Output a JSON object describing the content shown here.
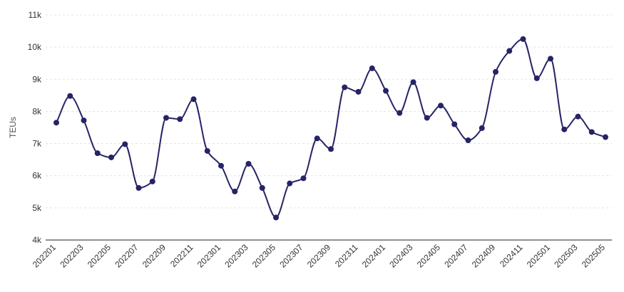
{
  "chart_data": {
    "type": "line",
    "title": "",
    "xlabel": "",
    "ylabel": "TEUs",
    "ylim": [
      4000,
      11000
    ],
    "yticks": [
      "4k",
      "5k",
      "6k",
      "7k",
      "8k",
      "9k",
      "10k",
      "11k"
    ],
    "ytick_values": [
      4000,
      5000,
      6000,
      7000,
      8000,
      9000,
      10000,
      11000
    ],
    "grid": true,
    "color": "#262466",
    "x": [
      "202201",
      "202202",
      "202203",
      "202204",
      "202205",
      "202206",
      "202207",
      "202208",
      "202209",
      "202210",
      "202211",
      "202212",
      "202301",
      "202302",
      "202303",
      "202304",
      "202305",
      "202306",
      "202307",
      "202308",
      "202309",
      "202310",
      "202311",
      "202312",
      "202401",
      "202402",
      "202403",
      "202404",
      "202405",
      "202406",
      "202407",
      "202408",
      "202409",
      "202410",
      "202411",
      "202412",
      "202501",
      "202502",
      "202503",
      "202504",
      "202505"
    ],
    "xtick_labels": [
      "202201",
      "202203",
      "202205",
      "202207",
      "202209",
      "202211",
      "202301",
      "202303",
      "202305",
      "202307",
      "202309",
      "202311",
      "202401",
      "202403",
      "202405",
      "202407",
      "202409",
      "202411",
      "202501",
      "202503",
      "202505"
    ],
    "series": [
      {
        "values": [
          7650,
          8480,
          7720,
          6700,
          6570,
          6980,
          5620,
          5820,
          7800,
          7760,
          8380,
          6770,
          6310,
          5510,
          6370,
          5620,
          4700,
          5760,
          5920,
          7160,
          6830,
          8750,
          8610,
          9340,
          8640,
          7950,
          8910,
          7800,
          8180,
          7600,
          7100,
          7480,
          9230,
          9880,
          10250,
          9030,
          9640,
          7440,
          7840,
          7360,
          7200
        ]
      }
    ]
  }
}
